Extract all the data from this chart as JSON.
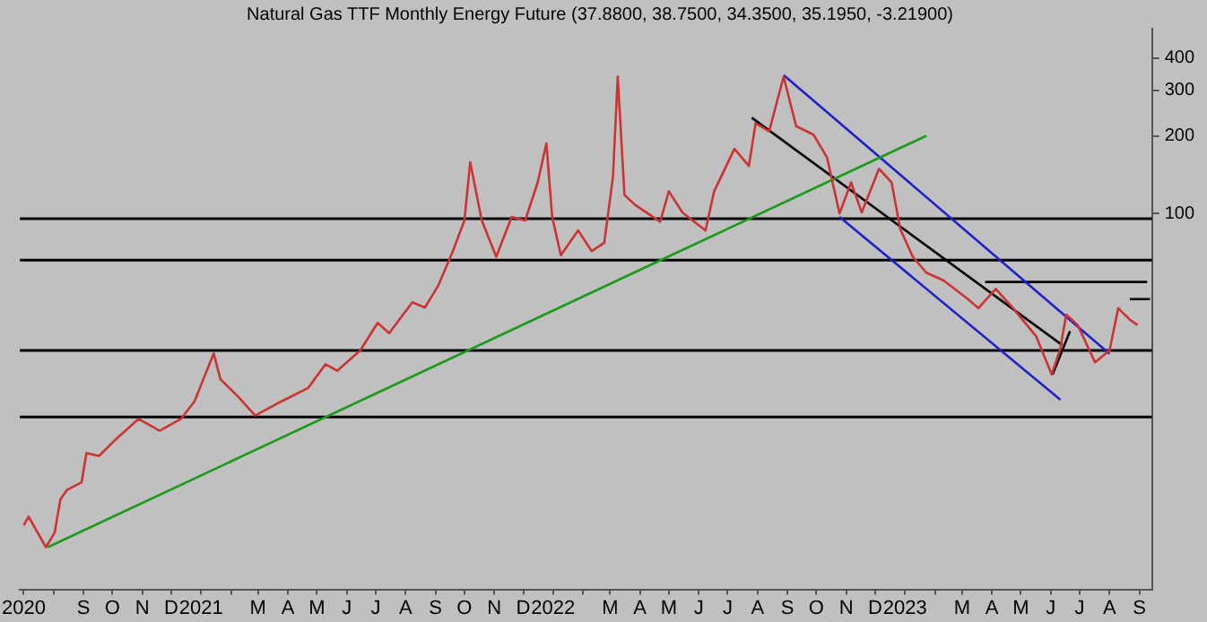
{
  "chart_data": {
    "type": "line",
    "title": "Natural Gas TTF Monthly Energy Future (37.8800, 38.7500, 34.3500, 35.1950, -3.21900)",
    "log": true,
    "grid": false,
    "legend": false,
    "xlim": [
      "2020-06-27",
      "2023-09-14"
    ],
    "ylim": [
      3.5,
      520
    ],
    "yticks": [
      100,
      200,
      300,
      400
    ],
    "xticks": [
      {
        "value": "2020-07-01",
        "label": "2020"
      },
      {
        "value": "2020-08-01",
        "label": null
      },
      {
        "value": "2020-09-01",
        "label": "S"
      },
      {
        "value": "2020-10-01",
        "label": "O"
      },
      {
        "value": "2020-11-01",
        "label": "N"
      },
      {
        "value": "2020-12-01",
        "label": "D"
      },
      {
        "value": "2021-01-01",
        "label": "2021"
      },
      {
        "value": "2021-02-01",
        "label": null
      },
      {
        "value": "2021-03-01",
        "label": "M"
      },
      {
        "value": "2021-04-01",
        "label": "A"
      },
      {
        "value": "2021-05-01",
        "label": "M"
      },
      {
        "value": "2021-06-01",
        "label": "J"
      },
      {
        "value": "2021-07-01",
        "label": "J"
      },
      {
        "value": "2021-08-01",
        "label": "A"
      },
      {
        "value": "2021-09-01",
        "label": "S"
      },
      {
        "value": "2021-10-01",
        "label": "O"
      },
      {
        "value": "2021-11-01",
        "label": "N"
      },
      {
        "value": "2021-12-01",
        "label": "D"
      },
      {
        "value": "2022-01-01",
        "label": "2022"
      },
      {
        "value": "2022-02-01",
        "label": null
      },
      {
        "value": "2022-03-01",
        "label": "M"
      },
      {
        "value": "2022-04-01",
        "label": "A"
      },
      {
        "value": "2022-05-01",
        "label": "M"
      },
      {
        "value": "2022-06-01",
        "label": "J"
      },
      {
        "value": "2022-07-01",
        "label": "J"
      },
      {
        "value": "2022-08-01",
        "label": "A"
      },
      {
        "value": "2022-09-01",
        "label": "S"
      },
      {
        "value": "2022-10-01",
        "label": "O"
      },
      {
        "value": "2022-11-01",
        "label": "N"
      },
      {
        "value": "2022-12-01",
        "label": "D"
      },
      {
        "value": "2023-01-01",
        "label": "2023"
      },
      {
        "value": "2023-02-01",
        "label": null
      },
      {
        "value": "2023-03-01",
        "label": "M"
      },
      {
        "value": "2023-04-01",
        "label": "A"
      },
      {
        "value": "2023-05-01",
        "label": "M"
      },
      {
        "value": "2023-06-01",
        "label": "J"
      },
      {
        "value": "2023-07-01",
        "label": "J"
      },
      {
        "value": "2023-08-01",
        "label": "A"
      },
      {
        "value": "2023-09-01",
        "label": "S"
      }
    ],
    "ref_lines": [
      {
        "axis": "y",
        "value": 95.5,
        "color": "#000000"
      },
      {
        "axis": "y",
        "value": 66,
        "color": "#000000"
      },
      {
        "axis": "y",
        "value": 29.5,
        "color": "#000000"
      },
      {
        "axis": "y",
        "value": 16.3,
        "color": "#000000"
      }
    ],
    "series": [
      {
        "color": "#cc3333",
        "x": [
          "2020-07-01",
          "2020-07-06",
          "2020-07-24",
          "2020-08-02",
          "2020-08-08",
          "2020-08-15",
          "2020-08-30",
          "2020-09-04",
          "2020-09-17",
          "2020-10-05",
          "2020-10-28",
          "2020-11-19",
          "2020-12-11",
          "2020-12-25",
          "2021-01-14",
          "2021-01-21",
          "2021-02-08",
          "2021-02-26",
          "2021-03-25",
          "2021-04-22",
          "2021-05-10",
          "2021-05-22",
          "2021-06-15",
          "2021-07-03",
          "2021-07-15",
          "2021-08-08",
          "2021-08-21",
          "2021-09-04",
          "2021-09-19",
          "2021-10-01",
          "2021-10-07",
          "2021-10-19",
          "2021-11-03",
          "2021-11-19",
          "2021-12-03",
          "2021-12-16",
          "2021-12-25",
          "2021-12-31",
          "2022-01-09",
          "2022-01-27",
          "2022-02-10",
          "2022-02-23",
          "2022-03-04",
          "2022-03-09",
          "2022-03-16",
          "2022-03-27",
          "2022-04-22",
          "2022-05-01",
          "2022-05-15",
          "2022-06-08",
          "2022-06-17",
          "2022-07-08",
          "2022-07-23",
          "2022-07-30",
          "2022-08-13",
          "2022-08-28",
          "2022-09-10",
          "2022-09-28",
          "2022-10-12",
          "2022-10-25",
          "2022-11-06",
          "2022-11-17",
          "2022-12-05",
          "2022-12-18",
          "2022-12-27",
          "2023-01-09",
          "2023-01-23",
          "2023-02-10",
          "2023-03-06",
          "2023-03-18",
          "2023-04-05",
          "2023-04-23",
          "2023-05-17",
          "2023-06-02",
          "2023-06-11",
          "2023-06-17",
          "2023-06-29",
          "2023-07-17",
          "2023-08-01",
          "2023-08-10",
          "2023-08-22",
          "2023-08-30"
        ],
        "values": [
          6.2,
          6.7,
          5.1,
          5.8,
          7.8,
          8.5,
          9.1,
          11.8,
          11.5,
          13.4,
          16,
          14.4,
          16,
          18.7,
          28.7,
          22.8,
          19.6,
          16.5,
          18.7,
          21.1,
          26.1,
          24.6,
          29.5,
          37.7,
          34.4,
          45.3,
          43.2,
          52.7,
          71.5,
          94,
          158,
          94,
          68,
          97,
          94,
          132,
          187,
          97,
          69,
          86,
          71.5,
          77,
          138,
          339,
          118,
          108,
          93,
          122,
          101,
          86,
          122,
          178,
          153,
          224,
          208,
          339,
          218,
          202,
          165,
          100,
          132,
          101,
          149,
          132,
          87,
          68,
          59,
          55,
          47,
          43,
          51,
          43,
          33.4,
          23.8,
          30,
          40.6,
          37,
          26.5,
          29.5,
          43,
          38.8,
          37
        ]
      },
      {
        "color": "#1a9a1a",
        "x": [
          "2020-07-26",
          "2023-01-23"
        ],
        "values": [
          5.1,
          200
        ]
      },
      {
        "color": "#000000",
        "x": [
          "2022-07-26",
          "2023-06-13"
        ],
        "values": [
          235,
          30.9
        ]
      },
      {
        "color": "#000000",
        "x": [
          "2023-06-03",
          "2023-06-21"
        ],
        "values": [
          23.8,
          35
        ]
      },
      {
        "color": "#2020c8",
        "x": [
          "2022-08-28",
          "2023-08-01"
        ],
        "values": [
          344,
          28.6
        ]
      },
      {
        "color": "#2020c8",
        "x": [
          "2022-10-25",
          "2023-06-11"
        ],
        "values": [
          97,
          19
        ]
      },
      {
        "color": "#000000",
        "x": [
          "2023-03-25",
          "2023-09-09"
        ],
        "values": [
          54.3,
          54.3
        ]
      },
      {
        "color": "#000000",
        "x": [
          "2023-08-22",
          "2023-09-12"
        ],
        "values": [
          46.6,
          46.6
        ]
      }
    ]
  }
}
